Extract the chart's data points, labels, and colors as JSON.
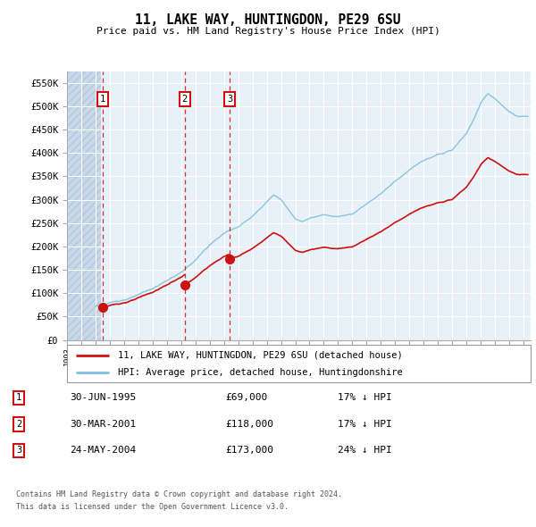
{
  "title": "11, LAKE WAY, HUNTINGDON, PE29 6SU",
  "subtitle": "Price paid vs. HM Land Registry's House Price Index (HPI)",
  "hpi_color": "#7fbfdf",
  "price_color": "#cc1111",
  "background_hatch_color": "#dce9f5",
  "background_plain_color": "#e8f0f8",
  "legend_label1": "11, LAKE WAY, HUNTINGDON, PE29 6SU (detached house)",
  "legend_label2": "HPI: Average price, detached house, Huntingdonshire",
  "sales": [
    {
      "num": 1,
      "date_label": "30-JUN-1995",
      "date_x": 1995.5,
      "price": 69000,
      "label": "£69,000",
      "pct": "17% ↓ HPI"
    },
    {
      "num": 2,
      "date_label": "30-MAR-2001",
      "date_x": 2001.25,
      "price": 118000,
      "label": "£118,000",
      "pct": "17% ↓ HPI"
    },
    {
      "num": 3,
      "date_label": "24-MAY-2004",
      "date_x": 2004.4,
      "price": 173000,
      "label": "£173,000",
      "pct": "24% ↓ HPI"
    }
  ],
  "footer_line1": "Contains HM Land Registry data © Crown copyright and database right 2024.",
  "footer_line2": "This data is licensed under the Open Government Licence v3.0.",
  "ylim": [
    0,
    575000
  ],
  "xlim": [
    1993,
    2025.5
  ],
  "yticks": [
    0,
    50000,
    100000,
    150000,
    200000,
    250000,
    300000,
    350000,
    400000,
    450000,
    500000,
    550000
  ],
  "hpi_anchor_years": [
    1995,
    1996,
    1997,
    1998,
    1999,
    2000,
    2001,
    2002,
    2003,
    2004,
    2005,
    2006,
    2007,
    2007.5,
    2008,
    2008.5,
    2009,
    2009.5,
    2010,
    2011,
    2012,
    2013,
    2014,
    2015,
    2016,
    2017,
    2018,
    2019,
    2020,
    2021,
    2021.5,
    2022,
    2022.5,
    2023,
    2023.5,
    2024,
    2024.5,
    2025
  ],
  "hpi_anchor_vals": [
    72000,
    78000,
    86000,
    95000,
    108000,
    125000,
    143000,
    168000,
    200000,
    225000,
    240000,
    262000,
    295000,
    310000,
    300000,
    278000,
    258000,
    255000,
    262000,
    268000,
    265000,
    272000,
    295000,
    318000,
    345000,
    370000,
    390000,
    400000,
    410000,
    445000,
    475000,
    510000,
    530000,
    520000,
    505000,
    490000,
    480000,
    478000
  ]
}
